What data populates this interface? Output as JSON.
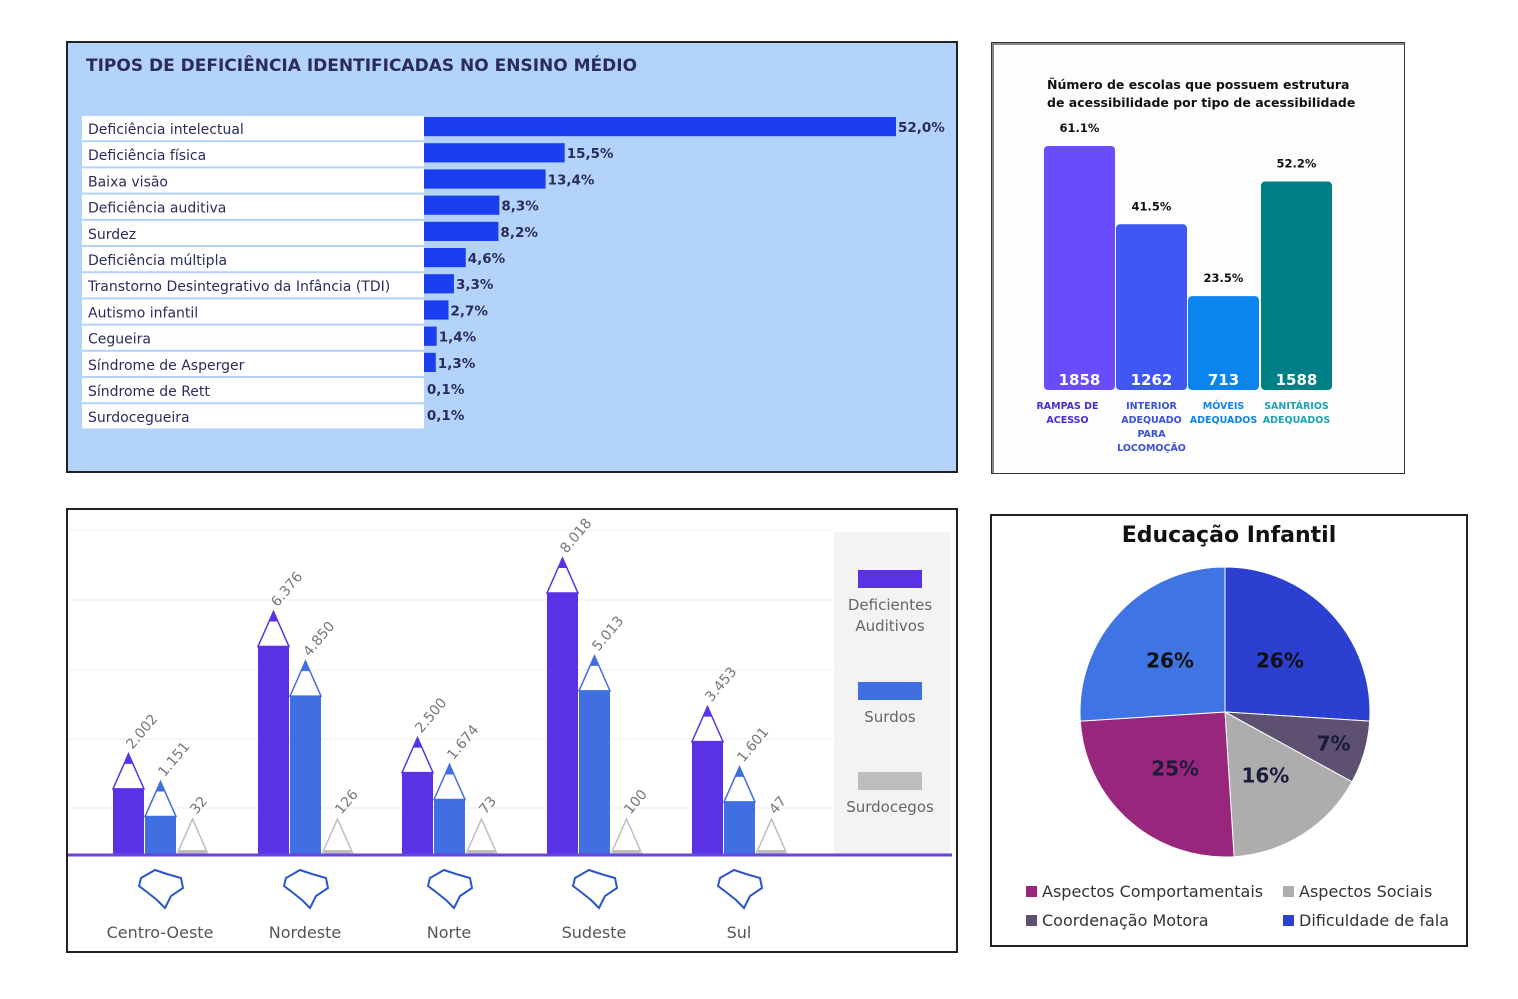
{
  "colors": {
    "panel1_bg": "#b3d3fb",
    "bar_blue": "#1b3ff0",
    "title_navy": "#2b2c5c",
    "auditivos": "#5a32e6",
    "surdos": "#3f6fe0",
    "surdocegos": "#bdbdbd"
  },
  "chart_data": [
    {
      "type": "bar",
      "orientation": "horizontal",
      "title": "TIPOS DE DEFICIÊNCIA IDENTIFICADAS NO ENSINO MÉDIO",
      "categories": [
        "Deficiência intelectual",
        "Deficiência física",
        "Baixa visão",
        "Deficiência auditiva",
        "Surdez",
        "Deficiência múltipla",
        "Transtorno Desintegrativo da Infância (TDI)",
        "Autismo infantil",
        "Cegueira",
        "Síndrome de Asperger",
        "Síndrome de Rett",
        "Surdocegueira"
      ],
      "values": [
        52.0,
        15.5,
        13.4,
        8.3,
        8.2,
        4.6,
        3.3,
        2.7,
        1.4,
        1.3,
        0.1,
        0.1
      ],
      "value_labels": [
        "52,0%",
        "15,5%",
        "13,4%",
        "8,3%",
        "8,2%",
        "4,6%",
        "3,3%",
        "2,7%",
        "1,4%",
        "1,3%",
        "0,1%",
        "0,1%"
      ],
      "xlim": [
        0,
        52
      ]
    },
    {
      "type": "bar",
      "title": "Ñúmero de escolas que possuem estrutura de acessibilidade por tipo de acessibilidade",
      "categories": [
        [
          "RAMPAS DE",
          "ACESSO"
        ],
        [
          "INTERIOR",
          "ADEQUADO",
          "PARA",
          "LOCOMOÇÃO"
        ],
        [
          "MÓVEIS",
          "ADEQUADOS"
        ],
        [
          "SANITÁRIOS",
          "ADEQUADOS"
        ]
      ],
      "values": [
        61.1,
        41.5,
        23.5,
        52.2
      ],
      "value_labels": [
        "61.1%",
        "41.5%",
        "23.5%",
        "52.2%"
      ],
      "counts": [
        "1858",
        "1262",
        "713",
        "1588"
      ],
      "bar_colors": [
        "#6b4cfb",
        "#3f57f3",
        "#0c84ee",
        "#007f86"
      ],
      "label_colors": [
        "#4b2ad4",
        "#3a50d6",
        "#0c84ee",
        "#1aa3b8"
      ],
      "ylim": [
        0,
        70
      ]
    },
    {
      "type": "bar",
      "categories": [
        "Centro-Oeste",
        "Nordeste",
        "Norte",
        "Sudeste",
        "Sul"
      ],
      "series": [
        {
          "name": "Deficientes Auditivos",
          "values": [
            2002,
            6376,
            2500,
            8018,
            3453
          ],
          "labels": [
            "2.002",
            "6.376",
            "2.500",
            "8.018",
            "3.453"
          ]
        },
        {
          "name": "Surdos",
          "values": [
            1151,
            4850,
            1674,
            5013,
            1601
          ],
          "labels": [
            "1.151",
            "4.850",
            "1.674",
            "5.013",
            "1.601"
          ]
        },
        {
          "name": "Surdocegos",
          "values": [
            32,
            126,
            73,
            100,
            47
          ],
          "labels": [
            "32",
            "126",
            "73",
            "100",
            "47"
          ]
        }
      ],
      "legend": "right"
    },
    {
      "type": "pie",
      "title": "Educação Infantil",
      "slices": [
        {
          "name": "Dificuldade de fala",
          "value": 26,
          "label": "26%",
          "color": "#2b3fd0"
        },
        {
          "name": "Coordenação Motora",
          "value": 7,
          "label": "7%",
          "color": "#5e5070"
        },
        {
          "name": "Aspectos Sociais",
          "value": 16,
          "label": "16%",
          "color": "#adadad"
        },
        {
          "name": "Aspectos Comportamentais",
          "value": 25,
          "label": "25%",
          "color": "#98267c"
        },
        {
          "name": "",
          "value": 26,
          "label": "26%",
          "color": "#3e74e3"
        }
      ],
      "legend": "bottom",
      "legend_items": [
        {
          "name": "Aspectos Comportamentais",
          "color": "#98267c"
        },
        {
          "name": "Aspectos Sociais",
          "color": "#adadad"
        },
        {
          "name": "Coordenação Motora",
          "color": "#5e5070"
        },
        {
          "name": "Dificuldade de fala",
          "color": "#2b3fd0"
        }
      ]
    }
  ]
}
